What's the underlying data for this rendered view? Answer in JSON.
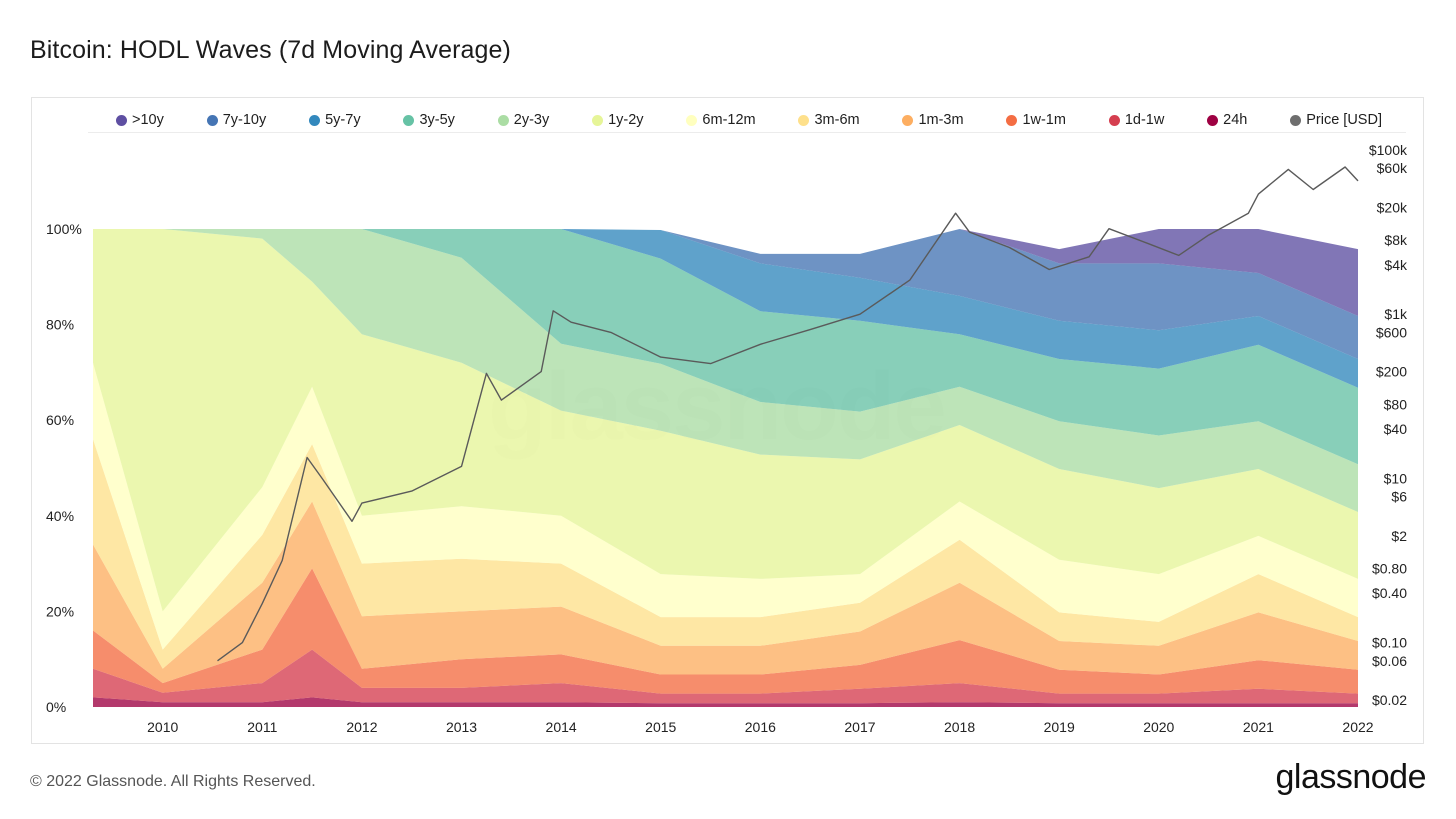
{
  "header": {
    "title": "Bitcoin: HODL Waves (7d Moving Average)"
  },
  "footer": {
    "copyright": "© 2022 Glassnode. All Rights Reserved.",
    "brand": "glassnode",
    "watermark": "glassnode"
  },
  "chart_data": {
    "type": "area",
    "title": "Bitcoin: HODL Waves (7d Moving Average)",
    "stacked": true,
    "x": [
      2009.3,
      2010,
      2011,
      2011.5,
      2012,
      2013,
      2014,
      2015,
      2016,
      2017,
      2018,
      2019,
      2020,
      2021,
      2022
    ],
    "x_tick_labels": [
      "2010",
      "2011",
      "2012",
      "2013",
      "2014",
      "2015",
      "2016",
      "2017",
      "2018",
      "2019",
      "2020",
      "2021",
      "2022"
    ],
    "x_ticks": [
      2010,
      2011,
      2012,
      2013,
      2014,
      2015,
      2016,
      2017,
      2018,
      2019,
      2020,
      2021,
      2022
    ],
    "xlim": [
      2009.25,
      2022.02
    ],
    "left_axis": {
      "ticks": [
        0,
        20,
        40,
        60,
        80,
        100
      ],
      "tick_labels": [
        "0%",
        "20%",
        "40%",
        "60%",
        "80%",
        "100%"
      ],
      "ylim": [
        0,
        100
      ]
    },
    "right_axis": {
      "scale": "log",
      "tick_values": [
        100000,
        60000,
        20000,
        8000,
        4000,
        1000,
        600,
        200,
        80,
        40,
        10,
        6,
        2,
        0.8,
        0.4,
        0.1,
        0.06,
        0.02
      ],
      "tick_labels": [
        "$100k",
        "$60k",
        "$20k",
        "$8k",
        "$4k",
        "$1k",
        "$600",
        "$200",
        "$80",
        "$40",
        "$10",
        "$6",
        "$2",
        "$0.80",
        "$0.40",
        "$0.10",
        "$0.06",
        "$0.02"
      ]
    },
    "legend_position": "top",
    "series": [
      {
        "name": "24h",
        "color": "#9e0142",
        "values": [
          2,
          1,
          1,
          2,
          1,
          1,
          1,
          0.8,
          0.8,
          0.8,
          1,
          0.8,
          0.8,
          0.8,
          0.8
        ]
      },
      {
        "name": "1d-1w",
        "color": "#d53e4f",
        "values": [
          6,
          2,
          4,
          10,
          3,
          3,
          4,
          2,
          2,
          3,
          4,
          2,
          2,
          3,
          2
        ]
      },
      {
        "name": "1w-1m",
        "color": "#f46d43",
        "values": [
          8,
          2,
          7,
          17,
          4,
          6,
          6,
          4,
          4,
          5,
          9,
          5,
          4,
          6,
          5
        ]
      },
      {
        "name": "1m-3m",
        "color": "#fdae61",
        "values": [
          18,
          3,
          14,
          14,
          11,
          10,
          10,
          6,
          6,
          7,
          12,
          6,
          6,
          10,
          6
        ]
      },
      {
        "name": "3m-6m",
        "color": "#fee08b",
        "values": [
          22,
          4,
          10,
          12,
          11,
          11,
          9,
          6,
          6,
          6,
          9,
          6,
          5,
          8,
          5
        ]
      },
      {
        "name": "6m-12m",
        "color": "#ffffbf",
        "values": [
          16,
          8,
          10,
          12,
          10,
          11,
          10,
          9,
          8,
          6,
          8,
          11,
          10,
          8,
          8
        ]
      },
      {
        "name": "1y-2y",
        "color": "#e6f598",
        "values": [
          28,
          80,
          52,
          22,
          38,
          30,
          22,
          30,
          26,
          24,
          16,
          19,
          18,
          14,
          14
        ]
      },
      {
        "name": "2y-3y",
        "color": "#abdda4",
        "values": [
          0,
          0,
          2,
          11,
          22,
          22,
          14,
          14,
          11,
          10,
          8,
          10,
          11,
          10,
          10
        ]
      },
      {
        "name": "3y-5y",
        "color": "#66c2a5",
        "values": [
          0,
          0,
          0,
          0,
          0,
          6,
          24,
          22,
          19,
          19,
          11,
          13,
          14,
          16,
          16
        ]
      },
      {
        "name": "5y-7y",
        "color": "#3288bd",
        "values": [
          0,
          0,
          0,
          0,
          0,
          0,
          0,
          6,
          10,
          9,
          8,
          8,
          8,
          6,
          6
        ]
      },
      {
        "name": "7y-10y",
        "color": "#4575b4",
        "values": [
          0,
          0,
          0,
          0,
          0,
          0,
          0,
          0,
          2,
          5,
          14,
          12,
          14,
          9,
          9
        ]
      },
      {
        "name": ">10y",
        "color": "#5e4fa2",
        "values": [
          0,
          0,
          0,
          0,
          0,
          0,
          0,
          0,
          0,
          0,
          0,
          3,
          8,
          11,
          14
        ]
      }
    ],
    "legend_order": [
      ">10y",
      "7y-10y",
      "5y-7y",
      "3y-5y",
      "2y-3y",
      "1y-2y",
      "6m-12m",
      "3m-6m",
      "1m-3m",
      "1w-1m",
      "1d-1w",
      "24h",
      "Price [USD]"
    ],
    "price_series": {
      "name": "Price [USD]",
      "color": "#6e6e6e",
      "x": [
        2010.55,
        2010.8,
        2011.0,
        2011.2,
        2011.45,
        2011.6,
        2011.9,
        2012.0,
        2012.5,
        2013.0,
        2013.25,
        2013.4,
        2013.8,
        2013.92,
        2014.1,
        2014.5,
        2015.0,
        2015.5,
        2016.0,
        2016.5,
        2017.0,
        2017.5,
        2017.96,
        2018.1,
        2018.5,
        2018.9,
        2019.3,
        2019.5,
        2019.9,
        2020.2,
        2020.5,
        2020.9,
        2021.0,
        2021.3,
        2021.55,
        2021.87,
        2022.0
      ],
      "y": [
        0.06,
        0.1,
        0.3,
        1,
        18,
        10,
        3,
        5,
        7,
        14,
        190,
        90,
        200,
        1100,
        800,
        600,
        300,
        250,
        430,
        650,
        1000,
        2600,
        17000,
        10000,
        6500,
        3500,
        5000,
        11000,
        7200,
        5200,
        9200,
        17000,
        29000,
        58000,
        33000,
        62000,
        42000
      ]
    }
  }
}
